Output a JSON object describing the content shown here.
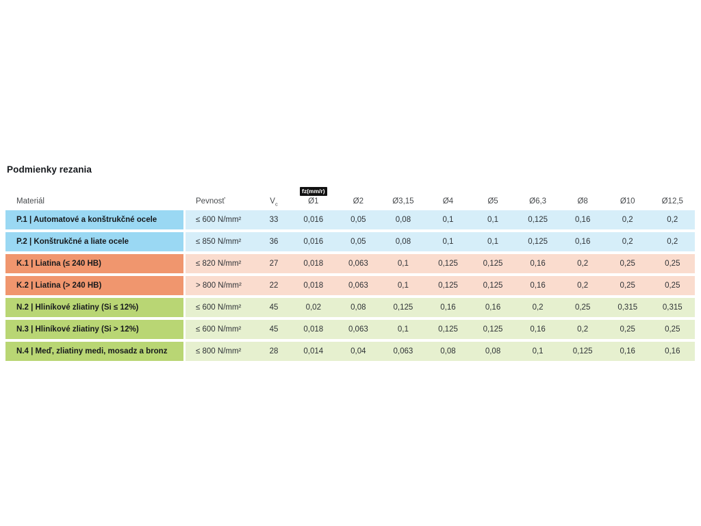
{
  "title": "Podmienky rezania",
  "table": {
    "header": {
      "material": "Materiál",
      "strength": "Pevnosť",
      "vc_base": "V",
      "vc_sub": "c",
      "feed_badge": "fz(mm/r)",
      "diameters": [
        "Ø1",
        "Ø2",
        "Ø3,15",
        "Ø4",
        "Ø5",
        "Ø6,3",
        "Ø8",
        "Ø10",
        "Ø12,5"
      ]
    },
    "colors": {
      "steel": {
        "dark": "#9ad8f3",
        "light": "#d6eef9"
      },
      "cast-iron": {
        "dark": "#f0966e",
        "light": "#fadcce"
      },
      "non-ferrous": {
        "dark": "#b9d674",
        "light": "#e6f0cf"
      },
      "badge_bg": "#111111",
      "badge_text": "#ffffff",
      "title_text": "#15181c",
      "header_text": "#46494c",
      "value_text": "#2e3236"
    },
    "rows": [
      {
        "group": "steel",
        "material": "P.1 | Automatové a konštrukčné ocele",
        "strength": "≤ 600 N/mm²",
        "vc": "33",
        "feeds": [
          "0,016",
          "0,05",
          "0,08",
          "0,1",
          "0,1",
          "0,125",
          "0,16",
          "0,2",
          "0,2"
        ]
      },
      {
        "group": "steel",
        "material": "P.2 | Konštrukčné a liate ocele",
        "strength": "≤ 850 N/mm²",
        "vc": "36",
        "feeds": [
          "0,016",
          "0,05",
          "0,08",
          "0,1",
          "0,1",
          "0,125",
          "0,16",
          "0,2",
          "0,2"
        ]
      },
      {
        "group": "cast-iron",
        "material": "K.1 | Liatina (≤ 240 HB)",
        "strength": "≤ 820 N/mm²",
        "vc": "27",
        "feeds": [
          "0,018",
          "0,063",
          "0,1",
          "0,125",
          "0,125",
          "0,16",
          "0,2",
          "0,25",
          "0,25"
        ]
      },
      {
        "group": "cast-iron",
        "material": "K.2 | Liatina (> 240 HB)",
        "strength": "> 800 N/mm²",
        "vc": "22",
        "feeds": [
          "0,018",
          "0,063",
          "0,1",
          "0,125",
          "0,125",
          "0,16",
          "0,2",
          "0,25",
          "0,25"
        ]
      },
      {
        "group": "non-ferrous",
        "material": "N.2 | Hliníkové zliatiny (Si ≤ 12%)",
        "strength": "≤ 600 N/mm²",
        "vc": "45",
        "feeds": [
          "0,02",
          "0,08",
          "0,125",
          "0,16",
          "0,16",
          "0,2",
          "0,25",
          "0,315",
          "0,315"
        ]
      },
      {
        "group": "non-ferrous",
        "material": "N.3 | Hliníkové zliatiny (Si > 12%)",
        "strength": "≤ 600 N/mm²",
        "vc": "45",
        "feeds": [
          "0,018",
          "0,063",
          "0,1",
          "0,125",
          "0,125",
          "0,16",
          "0,2",
          "0,25",
          "0,25"
        ]
      },
      {
        "group": "non-ferrous",
        "material": "N.4 | Meď, zliatiny medi, mosadz a bronz",
        "strength": "≤ 800 N/mm²",
        "vc": "28",
        "feeds": [
          "0,014",
          "0,04",
          "0,063",
          "0,08",
          "0,08",
          "0,1",
          "0,125",
          "0,16",
          "0,16"
        ]
      }
    ]
  }
}
